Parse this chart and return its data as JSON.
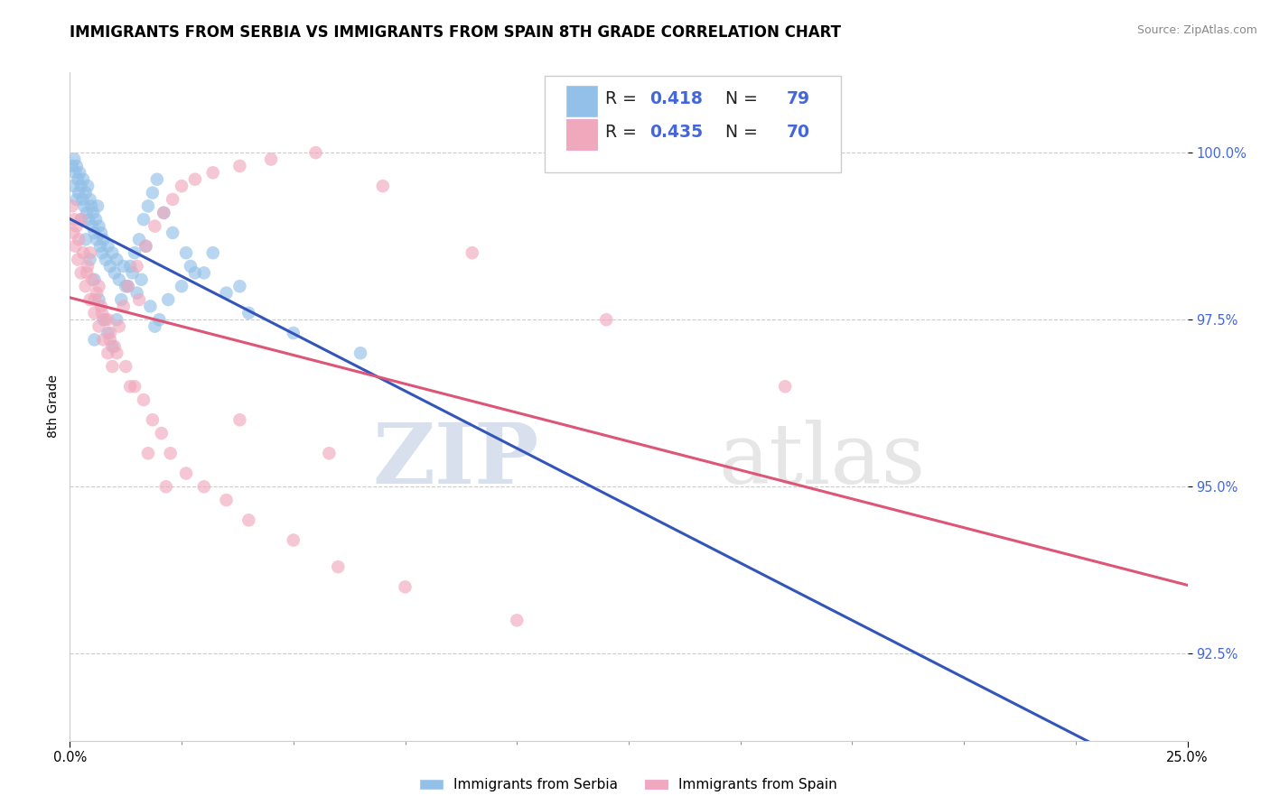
{
  "title": "IMMIGRANTS FROM SERBIA VS IMMIGRANTS FROM SPAIN 8TH GRADE CORRELATION CHART",
  "source_text": "Source: ZipAtlas.com",
  "ylabel": "8th Grade",
  "watermark_zip": "ZIP",
  "watermark_atlas": "atlas",
  "x_min": 0.0,
  "x_max": 25.0,
  "y_min": 91.2,
  "y_max": 101.2,
  "y_ticks": [
    92.5,
    95.0,
    97.5,
    100.0
  ],
  "y_tick_labels": [
    "92.5%",
    "95.0%",
    "97.5%",
    "100.0%"
  ],
  "x_ticks": [
    0,
    25
  ],
  "x_tick_labels": [
    "0.0%",
    "25.0%"
  ],
  "serbia_R": 0.418,
  "serbia_N": 79,
  "spain_R": 0.435,
  "spain_N": 70,
  "blue_scatter_color": "#92C0E8",
  "blue_line_color": "#3355BB",
  "pink_scatter_color": "#F0A8BC",
  "pink_line_color": "#DD5577",
  "title_fontsize": 12,
  "tick_fontsize": 10.5,
  "tick_color": "#4466DD",
  "ylabel_fontsize": 10,
  "source_fontsize": 9,
  "serbia_x": [
    0.05,
    0.08,
    0.1,
    0.12,
    0.15,
    0.18,
    0.2,
    0.22,
    0.25,
    0.28,
    0.3,
    0.32,
    0.35,
    0.38,
    0.4,
    0.42,
    0.45,
    0.48,
    0.5,
    0.52,
    0.55,
    0.58,
    0.6,
    0.62,
    0.65,
    0.68,
    0.7,
    0.72,
    0.75,
    0.8,
    0.85,
    0.9,
    0.95,
    1.0,
    1.05,
    1.1,
    1.2,
    1.3,
    1.4,
    1.5,
    1.6,
    1.8,
    2.0,
    2.2,
    2.5,
    2.8,
    3.2,
    0.15,
    0.25,
    0.35,
    0.45,
    0.55,
    0.65,
    0.75,
    0.85,
    0.95,
    1.05,
    1.15,
    1.25,
    1.35,
    1.45,
    1.55,
    1.65,
    1.75,
    1.85,
    1.95,
    2.1,
    2.3,
    2.6,
    3.0,
    3.5,
    4.0,
    5.0,
    6.5,
    3.8,
    2.7,
    1.7,
    0.55,
    1.9
  ],
  "serbia_y": [
    99.8,
    99.5,
    99.9,
    99.7,
    99.8,
    99.6,
    99.4,
    99.7,
    99.5,
    99.3,
    99.6,
    99.2,
    99.4,
    99.1,
    99.5,
    99.0,
    99.3,
    99.2,
    98.9,
    99.1,
    98.8,
    99.0,
    98.7,
    99.2,
    98.9,
    98.6,
    98.8,
    98.5,
    98.7,
    98.4,
    98.6,
    98.3,
    98.5,
    98.2,
    98.4,
    98.1,
    98.3,
    98.0,
    98.2,
    97.9,
    98.1,
    97.7,
    97.5,
    97.8,
    98.0,
    98.2,
    98.5,
    99.3,
    99.0,
    98.7,
    98.4,
    98.1,
    97.8,
    97.5,
    97.3,
    97.1,
    97.5,
    97.8,
    98.0,
    98.3,
    98.5,
    98.7,
    99.0,
    99.2,
    99.4,
    99.6,
    99.1,
    98.8,
    98.5,
    98.2,
    97.9,
    97.6,
    97.3,
    97.0,
    98.0,
    98.3,
    98.6,
    97.2,
    97.4
  ],
  "spain_x": [
    0.05,
    0.08,
    0.1,
    0.12,
    0.15,
    0.18,
    0.2,
    0.25,
    0.3,
    0.35,
    0.4,
    0.45,
    0.5,
    0.55,
    0.6,
    0.65,
    0.7,
    0.75,
    0.8,
    0.85,
    0.9,
    0.95,
    1.0,
    1.1,
    1.2,
    1.3,
    1.5,
    1.7,
    1.9,
    2.1,
    2.3,
    2.5,
    2.8,
    3.2,
    3.8,
    4.5,
    5.5,
    7.0,
    9.0,
    12.0,
    16.0,
    0.25,
    0.45,
    0.65,
    0.85,
    1.05,
    1.25,
    1.45,
    1.65,
    1.85,
    2.05,
    2.25,
    2.6,
    3.0,
    3.5,
    4.0,
    5.0,
    6.0,
    7.5,
    10.0,
    1.35,
    1.75,
    2.15,
    3.8,
    5.8,
    1.55,
    0.38,
    0.72,
    0.55,
    0.9
  ],
  "spain_y": [
    99.2,
    98.8,
    99.0,
    98.6,
    98.9,
    98.4,
    98.7,
    98.2,
    98.5,
    98.0,
    98.3,
    97.8,
    98.1,
    97.6,
    97.9,
    97.4,
    97.7,
    97.2,
    97.5,
    97.0,
    97.3,
    96.8,
    97.1,
    97.4,
    97.7,
    98.0,
    98.3,
    98.6,
    98.9,
    99.1,
    99.3,
    99.5,
    99.6,
    99.7,
    99.8,
    99.9,
    100.0,
    99.5,
    98.5,
    97.5,
    96.5,
    99.0,
    98.5,
    98.0,
    97.5,
    97.0,
    96.8,
    96.5,
    96.3,
    96.0,
    95.8,
    95.5,
    95.2,
    95.0,
    94.8,
    94.5,
    94.2,
    93.8,
    93.5,
    93.0,
    96.5,
    95.5,
    95.0,
    96.0,
    95.5,
    97.8,
    98.2,
    97.6,
    97.8,
    97.2
  ]
}
